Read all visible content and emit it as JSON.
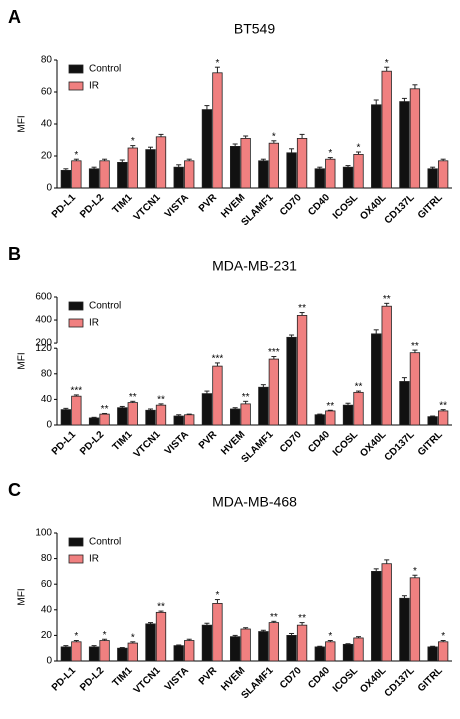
{
  "chart_data": [
    {
      "type": "bar",
      "panel_label": "A",
      "title": "BT549",
      "ylabel": "MFI",
      "categories": [
        "PD-L1",
        "PD-L2",
        "TIM1",
        "VTCN1",
        "VISTA",
        "PVR",
        "HVEM",
        "SLAMF1",
        "CD70",
        "CD40",
        "ICOSL",
        "OX40L",
        "CD137L",
        "GITRL"
      ],
      "series": [
        {
          "name": "Control",
          "color": "#111111",
          "values": [
            11,
            12,
            16,
            24,
            13,
            49,
            26,
            17,
            22,
            12,
            13,
            52,
            54,
            12
          ],
          "errors": [
            1,
            1,
            1.5,
            1.5,
            1.5,
            2.5,
            1.5,
            1,
            2.5,
            1,
            1,
            3,
            2,
            1
          ]
        },
        {
          "name": "IR",
          "color": "#f08080",
          "values": [
            17,
            17,
            25,
            32,
            17,
            72,
            31,
            28,
            31,
            18,
            21,
            73,
            62,
            17
          ],
          "errors": [
            1,
            1,
            1.5,
            1.5,
            1,
            3.5,
            1.5,
            1.5,
            2.5,
            1,
            1.5,
            2.5,
            2.5,
            1
          ],
          "significance": [
            "*",
            null,
            "*",
            null,
            null,
            "*",
            null,
            "*",
            null,
            "*",
            "*",
            "*",
            null,
            null
          ]
        }
      ],
      "ylim": [
        0,
        80
      ],
      "yticks": [
        0,
        20,
        40,
        60,
        80
      ],
      "legend": "upper left"
    },
    {
      "type": "bar",
      "panel_label": "B",
      "title": "MDA-MB-231",
      "ylabel": "MFI",
      "categories": [
        "PD-L1",
        "PD-L2",
        "TIM1",
        "VTCN1",
        "VISTA",
        "PVR",
        "HVEM",
        "SLAMF1",
        "CD70",
        "CD40",
        "ICOSL",
        "OX40L",
        "CD137L",
        "GITRL"
      ],
      "series": [
        {
          "name": "Control",
          "color": "#111111",
          "values": [
            24,
            11,
            27,
            23,
            14,
            49,
            25,
            59,
            250,
            16,
            31,
            280,
            68,
            13
          ],
          "errors": [
            2,
            1,
            2,
            2,
            2,
            4,
            2,
            4,
            20,
            1,
            3,
            35,
            6,
            1
          ]
        },
        {
          "name": "IR",
          "color": "#f08080",
          "values": [
            45,
            17,
            35,
            31,
            16,
            92,
            33,
            103,
            440,
            22,
            51,
            520,
            113,
            22
          ],
          "errors": [
            2,
            1,
            2,
            2,
            1,
            5,
            4,
            4,
            25,
            1,
            2,
            25,
            4,
            2
          ],
          "significance": [
            "***",
            "**",
            "**",
            "**",
            null,
            "***",
            "**",
            "***",
            "**",
            "**",
            "**",
            "**",
            "**",
            "**"
          ]
        }
      ],
      "ylim": [
        0,
        600
      ],
      "ylim_segments": [
        [
          0,
          120
        ],
        [
          200,
          600
        ]
      ],
      "yticks": [
        0,
        40,
        80,
        120,
        200,
        400,
        600
      ],
      "legend": "upper left"
    },
    {
      "type": "bar",
      "panel_label": "C",
      "title": "MDA-MB-468",
      "ylabel": "MFI",
      "categories": [
        "PD-L1",
        "PD-L2",
        "TIM1",
        "VTCN1",
        "VISTA",
        "PVR",
        "HVEM",
        "SLAMF1",
        "CD70",
        "CD40",
        "ICOSL",
        "OX40L",
        "CD137L",
        "GITRL"
      ],
      "series": [
        {
          "name": "Control",
          "color": "#111111",
          "values": [
            11,
            11,
            10,
            29,
            12,
            28,
            19,
            23,
            20,
            11,
            13,
            70,
            49,
            11
          ],
          "errors": [
            1,
            1,
            0.5,
            1,
            0.5,
            1.5,
            1,
            1,
            1.5,
            0.5,
            0.5,
            2,
            2,
            0.5
          ]
        },
        {
          "name": "IR",
          "color": "#f08080",
          "values": [
            15,
            16,
            14,
            38,
            16,
            45,
            25,
            30,
            28,
            15,
            18,
            76,
            65,
            15
          ],
          "errors": [
            1,
            1,
            1,
            1,
            1,
            3,
            1,
            1,
            2,
            1,
            1,
            3,
            2,
            1
          ],
          "significance": [
            "*",
            "*",
            "*",
            "**",
            null,
            "*",
            null,
            "**",
            "**",
            "*",
            null,
            null,
            "*",
            "*"
          ]
        }
      ],
      "ylim": [
        0,
        100
      ],
      "yticks": [
        0,
        20,
        40,
        60,
        80,
        100
      ],
      "legend": "upper left"
    }
  ]
}
